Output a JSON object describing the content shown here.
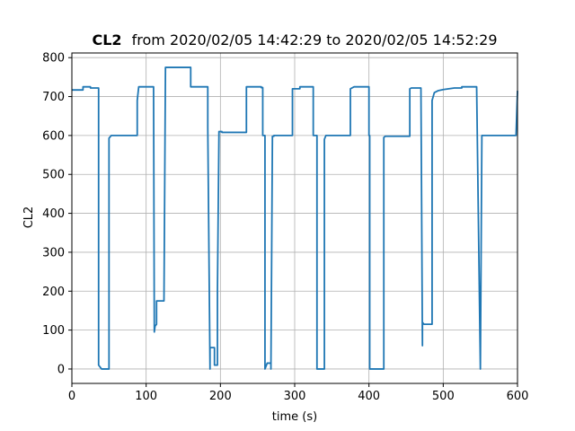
{
  "chart_data": {
    "type": "line",
    "title_bold": "CL2",
    "title_rest": "from 2020/02/05 14:42:29 to 2020/02/05 14:52:29",
    "xlabel": "time (s)",
    "ylabel": "CL2",
    "xlim": [
      0,
      600
    ],
    "ylim": [
      -37,
      812
    ],
    "x_ticks": [
      0,
      100,
      200,
      300,
      400,
      500,
      600
    ],
    "y_ticks": [
      0,
      100,
      200,
      300,
      400,
      500,
      600,
      700,
      800
    ],
    "grid": true,
    "line_color": "#1f77b4",
    "series": [
      {
        "x": [
          0,
          15,
          15,
          25,
          25,
          36,
          36,
          40,
          40,
          50,
          50,
          53,
          60,
          88,
          88,
          90,
          90,
          110,
          110,
          111,
          112,
          114,
          114,
          124,
          124,
          126,
          126,
          160,
          160,
          183,
          183,
          186,
          186,
          192,
          192,
          196,
          196,
          198,
          198,
          202,
          202,
          235,
          235,
          255,
          255,
          257,
          257,
          260,
          260,
          263,
          263,
          268,
          268,
          270,
          270,
          272,
          272,
          297,
          297,
          307,
          307,
          310,
          310,
          325,
          325,
          330,
          330,
          330,
          330,
          340,
          340,
          342,
          342,
          345,
          345,
          375,
          375,
          380,
          380,
          400,
          400,
          401,
          401,
          420,
          420,
          422,
          422,
          455,
          455,
          457,
          457,
          470,
          470,
          472,
          472,
          474,
          474,
          485,
          485,
          488,
          488,
          490,
          493,
          500,
          500,
          515,
          515,
          525,
          525,
          545,
          545,
          550,
          550,
          552,
          552,
          598,
          598,
          600
        ],
        "y": [
          717,
          717,
          725,
          725,
          722,
          722,
          10,
          0,
          0,
          0,
          593,
          600,
          600,
          600,
          690,
          725,
          725,
          725,
          725,
          95,
          110,
          115,
          175,
          175,
          175,
          770,
          775,
          775,
          725,
          725,
          620,
          0,
          55,
          55,
          10,
          10,
          200,
          600,
          610,
          610,
          608,
          608,
          725,
          725,
          723,
          723,
          600,
          600,
          0,
          15,
          15,
          15,
          0,
          590,
          598,
          598,
          600,
          600,
          720,
          720,
          725,
          725,
          725,
          725,
          600,
          600,
          600,
          300,
          0,
          0,
          590,
          600,
          600,
          600,
          600,
          600,
          720,
          725,
          725,
          725,
          600,
          600,
          0,
          0,
          595,
          598,
          598,
          598,
          720,
          722,
          722,
          722,
          720,
          60,
          120,
          115,
          115,
          115,
          690,
          710,
          710,
          712,
          715,
          718,
          718,
          722,
          722,
          722,
          725,
          725,
          725,
          0,
          0,
          590,
          600,
          600,
          600,
          715
        ]
      }
    ]
  }
}
